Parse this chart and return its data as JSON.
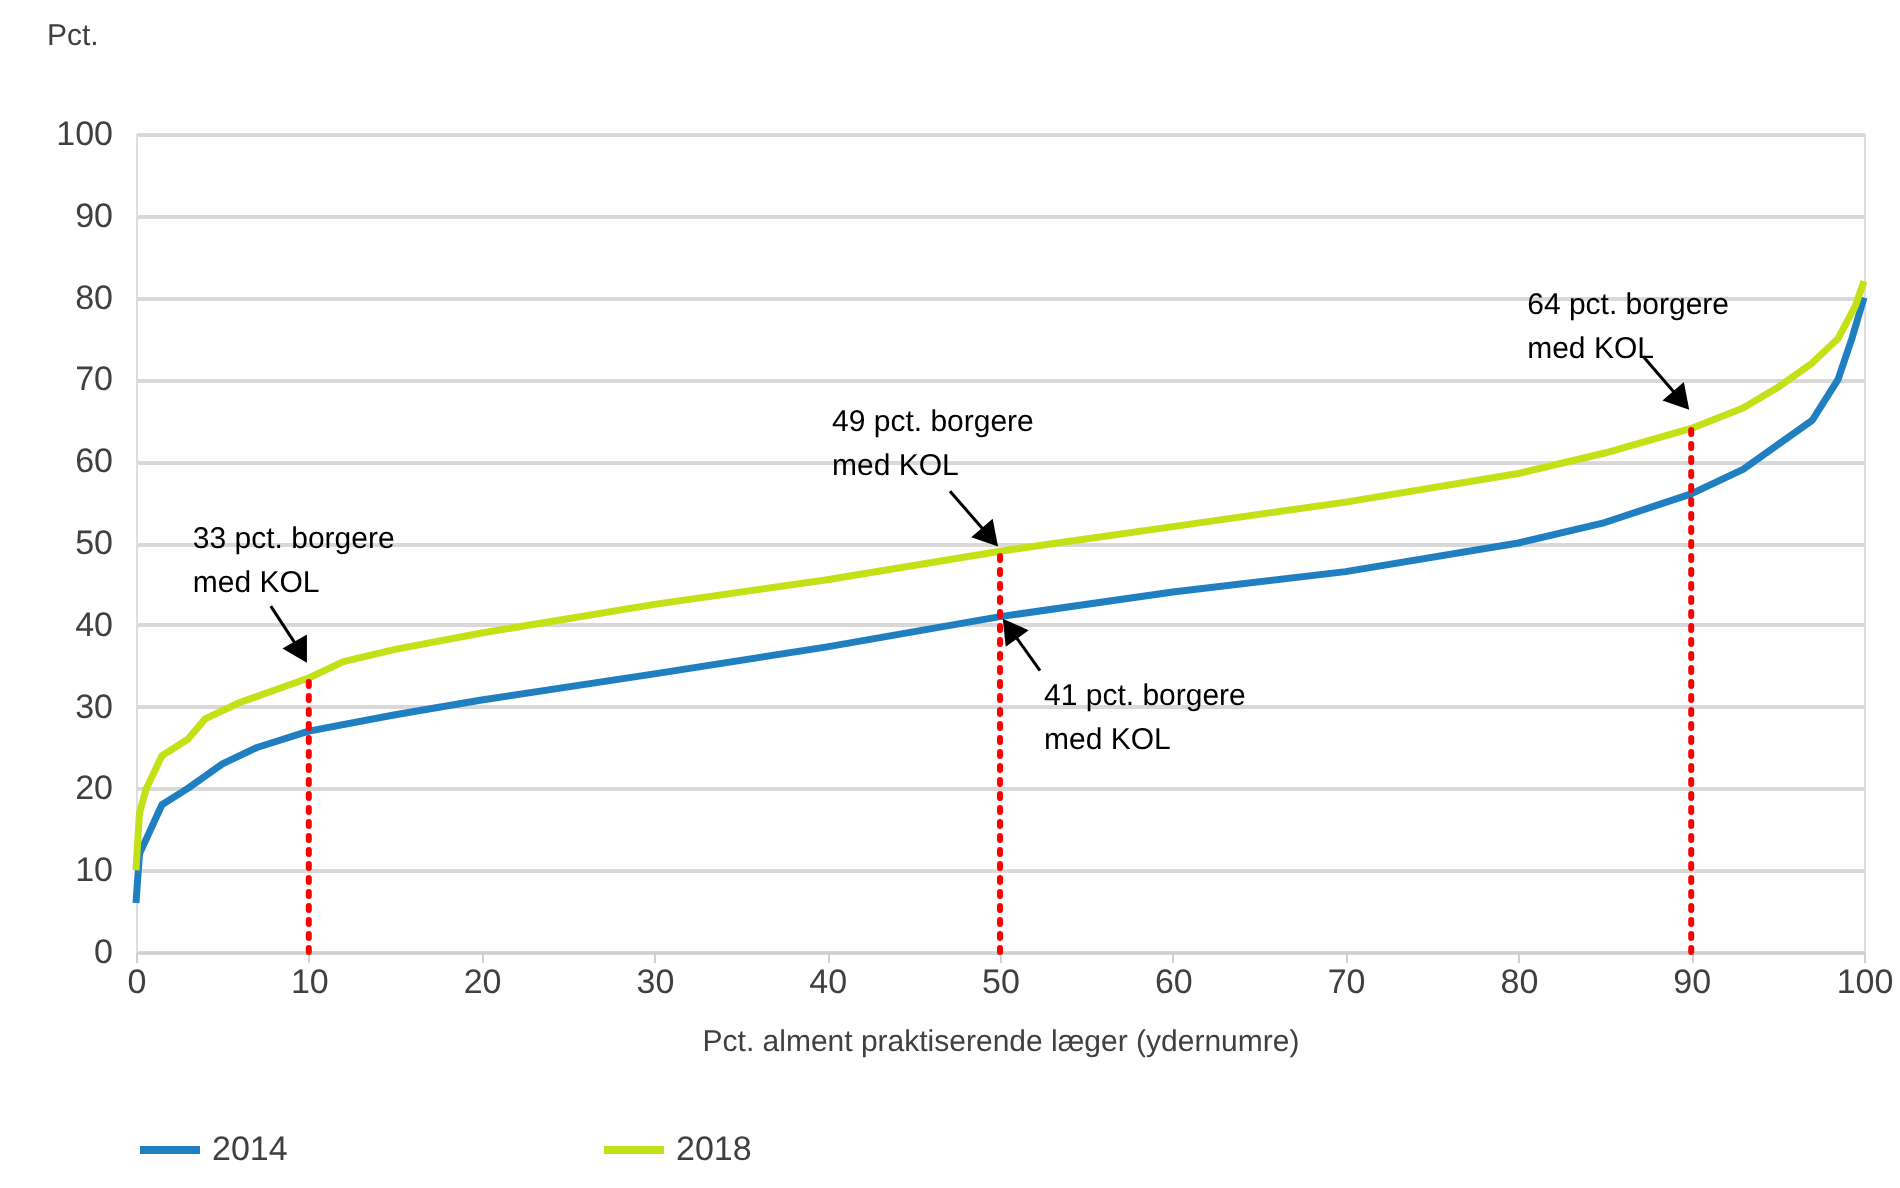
{
  "chart_data": {
    "type": "line",
    "ylabel": "Pct.",
    "xlabel": "Pct. alment praktiserende læger (ydernumre)",
    "xlim": [
      0,
      100
    ],
    "xticks": [
      0,
      10,
      20,
      30,
      40,
      50,
      60,
      70,
      80,
      90,
      100
    ],
    "ylim": [
      0,
      100
    ],
    "yticks": [
      0,
      10,
      20,
      30,
      40,
      50,
      60,
      70,
      80,
      90,
      100
    ],
    "grid": "y",
    "legend": "bottom",
    "line_style": "solid",
    "marker": "none",
    "series": [
      {
        "name": "2014",
        "color": "#1f7fc1",
        "x": [
          0,
          0.2,
          1.5,
          3,
          5,
          7,
          10,
          15,
          20,
          30,
          40,
          50,
          60,
          70,
          80,
          85,
          90,
          93,
          95,
          97,
          98.5,
          99.3,
          100
        ],
        "values": [
          6,
          12,
          18,
          20,
          23,
          25,
          27,
          29,
          30.8,
          34,
          37.3,
          41,
          44,
          46.5,
          50,
          52.5,
          56,
          59,
          62,
          65,
          70,
          75,
          80
        ]
      },
      {
        "name": "2018",
        "color": "#c4e016",
        "x": [
          0,
          0.2,
          0.6,
          1.5,
          3,
          4,
          6,
          8,
          10,
          12,
          15,
          20,
          30,
          40,
          50,
          60,
          70,
          80,
          85,
          90,
          93,
          95,
          97,
          98.5,
          99.5,
          100
        ],
        "values": [
          10,
          17,
          20,
          24,
          26,
          28.5,
          30.5,
          32,
          33.5,
          35.5,
          37,
          39,
          42.5,
          45.5,
          49,
          52,
          55,
          58.5,
          61,
          64,
          66.5,
          69,
          72,
          75,
          79,
          82
        ]
      }
    ],
    "ref_lines": [
      {
        "axis": "x",
        "value": 10,
        "color": "#ff0000",
        "line_style": "dotted"
      },
      {
        "axis": "x",
        "value": 50,
        "color": "#ff0000",
        "line_style": "dotted"
      },
      {
        "axis": "x",
        "value": 90,
        "color": "#ff0000",
        "line_style": "dotted"
      }
    ],
    "annotations": [
      {
        "text": "33 pct. borgere med KOL",
        "x": 10,
        "y": 33
      },
      {
        "text": "49 pct. borgere med KOL",
        "x": 50,
        "y": 49
      },
      {
        "text": "41 pct. borgere med KOL",
        "x": 50,
        "y": 41
      },
      {
        "text": "64 pct. borgere med KOL",
        "x": 90,
        "y": 64
      }
    ]
  }
}
